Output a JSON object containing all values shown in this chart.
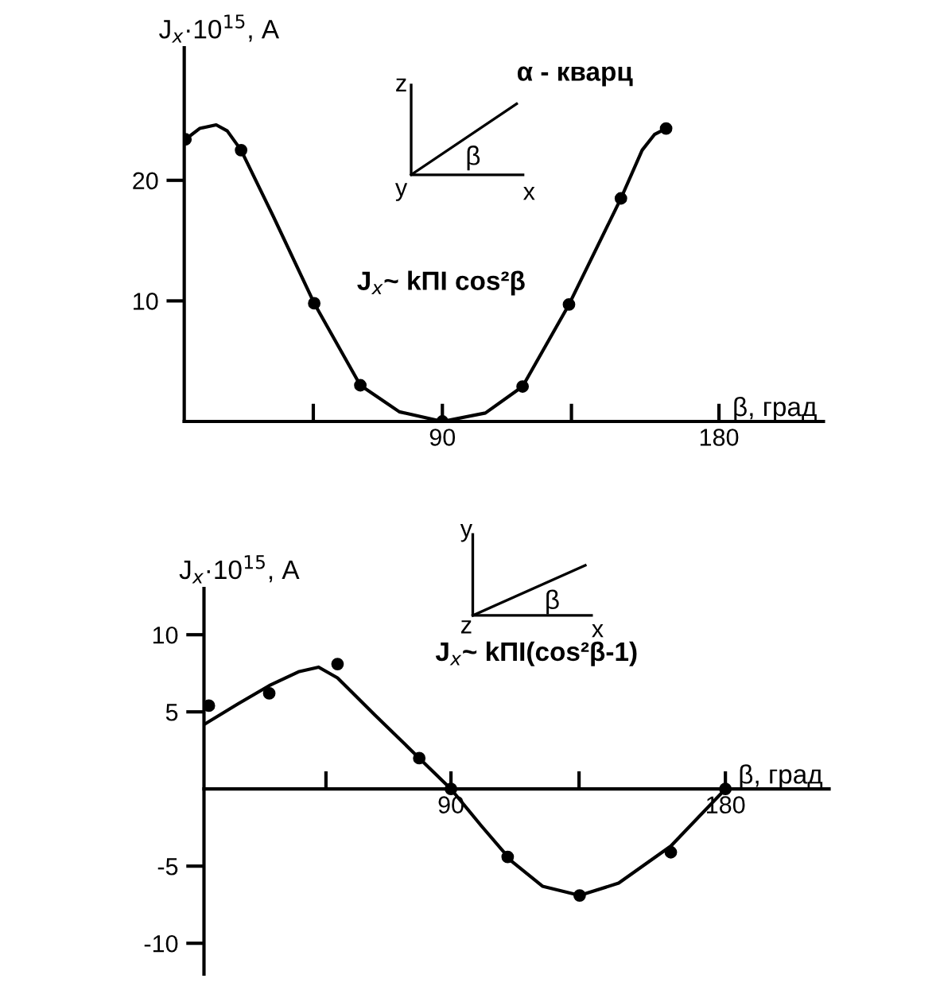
{
  "chart_data": [
    {
      "type": "scatter",
      "ylabel": "J$_{x}$·10$^{15}$, А",
      "xlabel": "β, град",
      "annotations": [
        "α - кварц",
        "J$_{x}$~ kПI cos²β",
        "z",
        "y",
        "x",
        "β"
      ],
      "xlim": [
        6,
        214
      ],
      "ylim": [
        0,
        31
      ],
      "xticks": [
        {
          "value": 48,
          "label": null
        },
        90,
        {
          "value": 132,
          "label": null
        },
        180
      ],
      "yticks": [
        10,
        20
      ],
      "grid": false,
      "legend": false,
      "series": [
        {
          "type": "line",
          "color": "#000000",
          "marker": "none",
          "line_style": "solid",
          "x": [
            6.4,
            11,
            16.4,
            20,
            24.5,
            35,
            48.3,
            63.3,
            76,
            90,
            104,
            116.1,
            131.2,
            148.1,
            155,
            159,
            162.8
          ],
          "values": [
            23.4,
            24.3,
            24.6,
            24.1,
            22.5,
            17,
            9.8,
            3,
            0.8,
            0,
            0.7,
            2.9,
            9.7,
            18.5,
            22.5,
            23.8,
            24.3
          ]
        },
        {
          "color": "#000000",
          "marker": "circle",
          "x": [
            6.4,
            24.5,
            48.3,
            63.3,
            90,
            116.1,
            131.2,
            148.1,
            162.8
          ],
          "values": [
            23.4,
            22.5,
            9.8,
            3,
            0,
            2.9,
            9.7,
            18.5,
            24.3
          ]
        }
      ]
    },
    {
      "type": "scatter",
      "ylabel": "J$_{x}$·10$^{15}$, А",
      "xlabel": "β, град",
      "annotations": [
        "J$_{x}$~ kПI(cos²β-1)",
        "y",
        "z",
        "x",
        "β"
      ],
      "xlim": [
        9,
        214
      ],
      "ylim": [
        -12,
        13
      ],
      "xticks": [
        {
          "value": 49,
          "label": null
        },
        90,
        {
          "value": 132,
          "label": null
        },
        180
      ],
      "yticks": [
        -10,
        -5,
        5,
        10
      ],
      "grid": false,
      "legend": false,
      "series": [
        {
          "type": "line",
          "color": "#000000",
          "marker": "none",
          "line_style": "solid",
          "x": [
            9.2,
            20,
            30.4,
            40,
            46.6,
            52.8,
            65,
            79.6,
            90,
            100,
            110,
            120,
            132.2,
            145,
            162.1,
            180
          ],
          "values": [
            4.2,
            5.5,
            6.7,
            7.6,
            7.9,
            7.2,
            4.8,
            2.0,
            0,
            -2.4,
            -4.7,
            -6.3,
            -6.9,
            -6.1,
            -3.7,
            0
          ]
        },
        {
          "color": "#000000",
          "marker": "circle",
          "x": [
            10.6,
            30.4,
            52.8,
            79.6,
            90,
            108.6,
            132.2,
            162.1,
            180
          ],
          "values": [
            5.4,
            6.2,
            8.1,
            2.0,
            0,
            -4.4,
            -6.9,
            -4.1,
            0
          ]
        }
      ]
    }
  ]
}
